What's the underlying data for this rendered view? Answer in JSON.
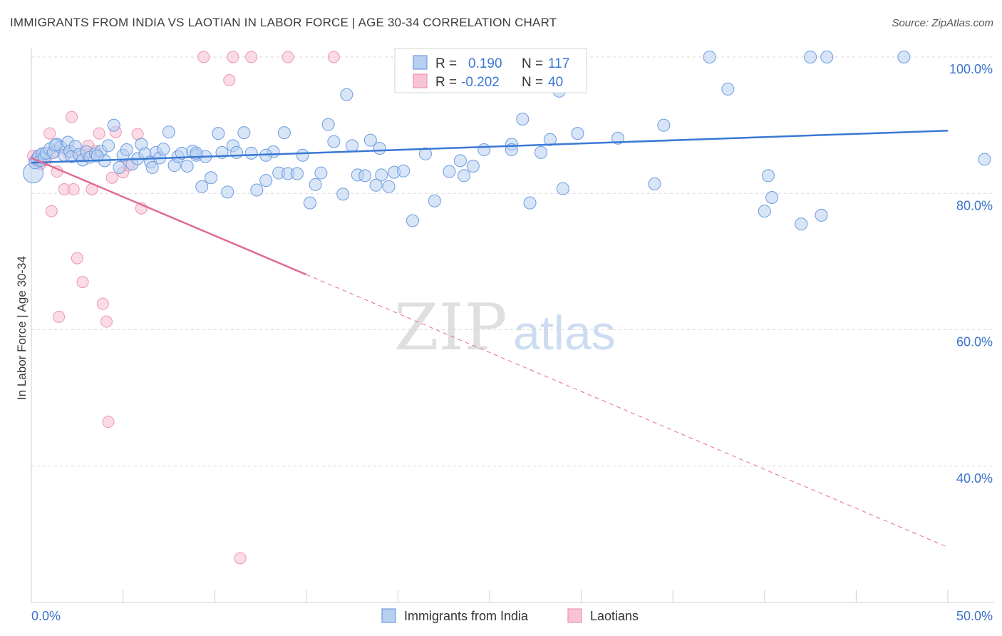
{
  "title": "IMMIGRANTS FROM INDIA VS LAOTIAN IN LABOR FORCE | AGE 30-34 CORRELATION CHART",
  "source": "Source: ZipAtlas.com",
  "watermark": {
    "zip": "ZIP",
    "atlas": "atlas"
  },
  "colors": {
    "blue": "#3a78d4",
    "blue_fill": "#b7cff0",
    "blue_stroke": "#6d9be0",
    "pink": "#e06c93",
    "pink_fill": "#f8c4d4",
    "pink_stroke": "#ee94b2",
    "grid": "#d8d8d8",
    "axis_label": "#3b73c9"
  },
  "stats_box": {
    "row1": {
      "r_label": "R =",
      "r_value": "0.190",
      "n_label": "N =",
      "n_value": "117"
    },
    "row2": {
      "r_label": "R =",
      "r_value": "-0.202",
      "n_label": "N =",
      "n_value": "40"
    }
  },
  "chart_data": {
    "type": "scatter",
    "title": "IMMIGRANTS FROM INDIA VS LAOTIAN IN LABOR FORCE | AGE 30-34 CORRELATION CHART",
    "xlabel": "",
    "ylabel": "In Labor Force | Age 30-34",
    "xlim": [
      0,
      50
    ],
    "ylim": [
      20,
      100
    ],
    "x_tick_labels": [
      "0.0%",
      "50.0%"
    ],
    "y_ticks": [
      40,
      60,
      80,
      100
    ],
    "y_tick_labels": [
      "40.0%",
      "60.0%",
      "80.0%",
      "100.0%"
    ],
    "grid": true,
    "legend_position": "bottom",
    "series": [
      {
        "name": "Immigrants from India",
        "color": "#6d9be0",
        "trendline": {
          "x": [
            0.0,
            50.0
          ],
          "y": [
            84.5,
            89.2
          ]
        },
        "points": [
          [
            0.1,
            83.0
          ],
          [
            0.2,
            84.5
          ],
          [
            0.3,
            85.0
          ],
          [
            0.4,
            85.5
          ],
          [
            0.5,
            84.8
          ],
          [
            0.6,
            85.8
          ],
          [
            0.7,
            85.2
          ],
          [
            0.8,
            85.9
          ],
          [
            1.0,
            86.5
          ],
          [
            1.2,
            86.0
          ],
          [
            1.4,
            87.2
          ],
          [
            1.6,
            86.8
          ],
          [
            1.8,
            85.6
          ],
          [
            2.0,
            87.5
          ],
          [
            2.1,
            86.2
          ],
          [
            2.2,
            85.4
          ],
          [
            2.4,
            86.9
          ],
          [
            2.6,
            85.7
          ],
          [
            2.8,
            84.9
          ],
          [
            3.0,
            86.1
          ],
          [
            3.2,
            85.3
          ],
          [
            3.5,
            85.8
          ],
          [
            3.8,
            86.2
          ],
          [
            4.0,
            84.8
          ],
          [
            4.2,
            87.0
          ],
          [
            4.5,
            90.0
          ],
          [
            4.8,
            83.8
          ],
          [
            5.0,
            85.6
          ],
          [
            5.2,
            86.4
          ],
          [
            5.5,
            84.3
          ],
          [
            5.8,
            85.1
          ],
          [
            6.0,
            87.2
          ],
          [
            6.2,
            85.8
          ],
          [
            6.5,
            84.6
          ],
          [
            6.8,
            86.0
          ],
          [
            7.0,
            85.2
          ],
          [
            7.2,
            86.5
          ],
          [
            7.5,
            89.0
          ],
          [
            7.8,
            84.1
          ],
          [
            8.0,
            85.4
          ],
          [
            8.2,
            85.9
          ],
          [
            8.5,
            84.0
          ],
          [
            8.8,
            86.2
          ],
          [
            9.0,
            85.6
          ],
          [
            9.3,
            81.0
          ],
          [
            9.5,
            85.4
          ],
          [
            9.8,
            82.3
          ],
          [
            10.2,
            88.8
          ],
          [
            10.4,
            86.0
          ],
          [
            10.7,
            80.2
          ],
          [
            11.0,
            87.0
          ],
          [
            11.2,
            86.0
          ],
          [
            11.6,
            88.9
          ],
          [
            12.0,
            85.9
          ],
          [
            12.3,
            80.5
          ],
          [
            12.8,
            81.9
          ],
          [
            13.2,
            86.1
          ],
          [
            13.5,
            83.0
          ],
          [
            13.8,
            88.9
          ],
          [
            14.0,
            82.9
          ],
          [
            14.5,
            82.9
          ],
          [
            14.8,
            85.6
          ],
          [
            15.2,
            78.6
          ],
          [
            15.5,
            81.3
          ],
          [
            15.8,
            83.0
          ],
          [
            16.2,
            90.1
          ],
          [
            16.5,
            87.6
          ],
          [
            17.0,
            79.9
          ],
          [
            17.2,
            94.5
          ],
          [
            17.5,
            87.0
          ],
          [
            17.8,
            82.7
          ],
          [
            18.2,
            82.6
          ],
          [
            18.5,
            87.8
          ],
          [
            18.8,
            81.2
          ],
          [
            19.0,
            86.6
          ],
          [
            19.5,
            81.0
          ],
          [
            19.8,
            83.1
          ],
          [
            20.3,
            83.3
          ],
          [
            20.8,
            76.0
          ],
          [
            21.0,
            100.0
          ],
          [
            21.5,
            85.8
          ],
          [
            22.0,
            78.9
          ],
          [
            22.8,
            83.2
          ],
          [
            23.4,
            84.8
          ],
          [
            23.6,
            82.6
          ],
          [
            24.1,
            84.0
          ],
          [
            24.7,
            86.4
          ],
          [
            26.2,
            87.2
          ],
          [
            26.2,
            86.4
          ],
          [
            26.3,
            100.0
          ],
          [
            26.8,
            90.9
          ],
          [
            27.2,
            78.6
          ],
          [
            27.8,
            86.0
          ],
          [
            28.3,
            87.9
          ],
          [
            28.8,
            95.0
          ],
          [
            29.0,
            80.7
          ],
          [
            29.8,
            88.8
          ],
          [
            32.0,
            88.1
          ],
          [
            34.0,
            81.4
          ],
          [
            34.5,
            90.0
          ],
          [
            37.0,
            100.0
          ],
          [
            38.0,
            95.3
          ],
          [
            40.0,
            77.4
          ],
          [
            40.2,
            82.6
          ],
          [
            40.4,
            79.4
          ],
          [
            42.0,
            75.5
          ],
          [
            42.5,
            100.0
          ],
          [
            43.1,
            76.8
          ],
          [
            43.4,
            100.0
          ],
          [
            47.6,
            100.0
          ],
          [
            52.0,
            85.0
          ],
          [
            1.3,
            87.1
          ],
          [
            3.6,
            85.5
          ],
          [
            6.6,
            83.8
          ],
          [
            9.0,
            85.9
          ],
          [
            12.8,
            85.6
          ],
          [
            19.1,
            82.7
          ]
        ]
      },
      {
        "name": "Laotians",
        "color": "#ee94b2",
        "trendline": {
          "x": [
            0.0,
            15.0,
            50.0
          ],
          "y": [
            85.2,
            68.1,
            28.1
          ],
          "solid_until_x": 15.0
        },
        "points": [
          [
            0.1,
            85.5
          ],
          [
            0.2,
            84.8
          ],
          [
            0.3,
            85.2
          ],
          [
            0.5,
            84.3
          ],
          [
            0.6,
            85.8
          ],
          [
            0.8,
            84.9
          ],
          [
            1.0,
            88.8
          ],
          [
            1.1,
            77.4
          ],
          [
            1.3,
            86.2
          ],
          [
            1.4,
            83.2
          ],
          [
            1.5,
            61.9
          ],
          [
            1.8,
            80.6
          ],
          [
            2.0,
            86.0
          ],
          [
            2.2,
            91.2
          ],
          [
            2.3,
            80.6
          ],
          [
            2.5,
            70.5
          ],
          [
            2.7,
            85.5
          ],
          [
            2.8,
            67.0
          ],
          [
            3.0,
            85.8
          ],
          [
            3.1,
            87.0
          ],
          [
            3.3,
            80.6
          ],
          [
            3.5,
            86.2
          ],
          [
            3.7,
            88.8
          ],
          [
            3.9,
            63.8
          ],
          [
            4.1,
            61.2
          ],
          [
            4.2,
            46.5
          ],
          [
            4.4,
            82.3
          ],
          [
            4.6,
            89.0
          ],
          [
            5.0,
            83.1
          ],
          [
            5.3,
            84.1
          ],
          [
            5.8,
            88.7
          ],
          [
            6.0,
            77.8
          ],
          [
            9.4,
            100.0
          ],
          [
            11.0,
            100.0
          ],
          [
            12.0,
            100.0
          ],
          [
            14.0,
            100.0
          ],
          [
            16.5,
            100.0
          ],
          [
            10.8,
            96.6
          ],
          [
            11.4,
            26.5
          ],
          [
            0.4,
            84.6
          ]
        ]
      }
    ]
  }
}
